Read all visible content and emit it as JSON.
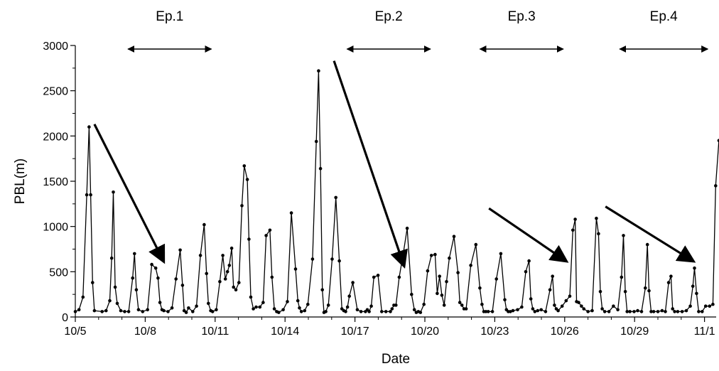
{
  "chart_data": {
    "type": "line",
    "xlabel": "Date",
    "ylabel": "PBL(m)",
    "x_ticks": [
      "10/5",
      "10/8",
      "10/11",
      "10/14",
      "10/17",
      "10/20",
      "10/23",
      "10/26",
      "10/29",
      "11/1"
    ],
    "x_tick_values": [
      0,
      3,
      6,
      9,
      12,
      15,
      18,
      21,
      24,
      27
    ],
    "xlim": [
      0,
      27.6
    ],
    "y_ticks": [
      "0",
      "500",
      "1000",
      "1500",
      "2000",
      "2500",
      "3000"
    ],
    "ylim": [
      0,
      3000
    ],
    "grid": false,
    "marker": "dot",
    "color": "#000000",
    "series": [
      {
        "x": [
          0.0,
          0.16,
          0.33,
          0.49,
          0.59,
          0.66,
          0.74,
          0.82,
          1.15,
          1.32,
          1.48,
          1.56,
          1.63,
          1.71,
          1.8,
          1.95,
          2.12,
          2.29,
          2.46,
          2.54,
          2.62,
          2.71,
          2.89,
          3.1,
          3.28,
          3.45,
          3.55,
          3.63,
          3.72,
          3.8,
          3.98,
          4.15,
          4.32,
          4.5,
          4.6,
          4.67,
          4.76,
          4.86,
          5.04,
          5.2,
          5.37,
          5.53,
          5.63,
          5.71,
          5.81,
          5.89,
          6.05,
          6.2,
          6.33,
          6.44,
          6.53,
          6.61,
          6.71,
          6.79,
          6.89,
          7.02,
          7.15,
          7.25,
          7.38,
          7.45,
          7.53,
          7.64,
          7.76,
          7.92,
          8.06,
          8.19,
          8.35,
          8.44,
          8.54,
          8.64,
          8.73,
          8.92,
          9.1,
          9.27,
          9.45,
          9.55,
          9.62,
          9.7,
          9.84,
          9.98,
          10.18,
          10.34,
          10.44,
          10.52,
          10.6,
          10.67,
          10.75,
          10.86,
          11.02,
          11.18,
          11.33,
          11.44,
          11.52,
          11.6,
          11.68,
          11.76,
          11.91,
          12.1,
          12.26,
          12.45,
          12.53,
          12.61,
          12.7,
          12.81,
          12.99,
          13.15,
          13.33,
          13.52,
          13.59,
          13.67,
          13.76,
          13.9,
          14.06,
          14.24,
          14.43,
          14.55,
          14.63,
          14.72,
          14.81,
          14.96,
          15.12,
          15.28,
          15.44,
          15.53,
          15.63,
          15.73,
          15.83,
          15.93,
          16.05,
          16.25,
          16.42,
          16.5,
          16.59,
          16.68,
          16.77,
          16.97,
          17.19,
          17.36,
          17.45,
          17.53,
          17.62,
          17.72,
          17.9,
          18.07,
          18.26,
          18.43,
          18.5,
          18.58,
          18.67,
          18.78,
          18.98,
          19.16,
          19.33,
          19.47,
          19.55,
          19.63,
          19.72,
          19.84,
          19.99,
          20.18,
          20.37,
          20.48,
          20.56,
          20.64,
          20.72,
          20.89,
          21.06,
          21.22,
          21.35,
          21.45,
          21.51,
          21.6,
          21.72,
          21.82,
          22.0,
          22.18,
          22.36,
          22.45,
          22.53,
          22.61,
          22.72,
          22.9,
          23.09,
          23.28,
          23.44,
          23.52,
          23.6,
          23.68,
          23.8,
          23.98,
          24.13,
          24.3,
          24.46,
          24.55,
          24.62,
          24.71,
          24.82,
          25.0,
          25.18,
          25.32,
          25.46,
          25.56,
          25.63,
          25.72,
          25.85,
          26.04,
          26.22,
          26.39,
          26.5,
          26.57,
          26.66,
          26.75,
          26.9,
          27.05,
          27.22,
          27.36,
          27.48,
          27.62
        ],
        "y": [
          60,
          80,
          220,
          1350,
          2100,
          1350,
          380,
          70,
          60,
          70,
          180,
          650,
          1380,
          330,
          150,
          70,
          60,
          60,
          430,
          700,
          300,
          80,
          60,
          80,
          580,
          540,
          430,
          160,
          80,
          70,
          60,
          100,
          420,
          740,
          350,
          70,
          50,
          100,
          60,
          120,
          680,
          1020,
          480,
          150,
          70,
          60,
          80,
          390,
          680,
          420,
          500,
          570,
          760,
          330,
          300,
          380,
          1230,
          1670,
          1520,
          860,
          220,
          90,
          110,
          110,
          160,
          900,
          960,
          440,
          90,
          60,
          50,
          80,
          170,
          1150,
          530,
          180,
          100,
          60,
          70,
          140,
          640,
          1940,
          2720,
          1640,
          300,
          50,
          60,
          130,
          640,
          1320,
          620,
          90,
          70,
          60,
          110,
          230,
          380,
          80,
          60,
          60,
          80,
          60,
          120,
          440,
          460,
          60,
          60,
          60,
          90,
          130,
          130,
          440,
          680,
          980,
          250,
          80,
          50,
          60,
          50,
          140,
          510,
          680,
          690,
          260,
          450,
          240,
          130,
          390,
          650,
          890,
          490,
          160,
          130,
          90,
          90,
          570,
          800,
          320,
          140,
          60,
          60,
          60,
          60,
          420,
          700,
          190,
          80,
          60,
          60,
          70,
          80,
          110,
          500,
          620,
          200,
          90,
          60,
          70,
          80,
          60,
          300,
          450,
          130,
          90,
          70,
          120,
          180,
          230,
          960,
          1080,
          170,
          160,
          120,
          90,
          60,
          70,
          1090,
          920,
          280,
          90,
          60,
          60,
          120,
          80,
          440,
          900,
          280,
          60,
          60,
          60,
          70,
          60,
          320,
          800,
          290,
          60,
          60,
          60,
          70,
          60,
          380,
          450,
          90,
          60,
          60,
          60,
          70,
          120,
          340,
          540,
          260,
          60,
          60,
          120,
          120,
          140,
          1450,
          1950
        ]
      }
    ],
    "annotations": {
      "episodes": [
        {
          "label": "Ep.1",
          "start": 2.2,
          "end": 5.9
        },
        {
          "label": "Ep.2",
          "start": 11.6,
          "end": 15.3
        },
        {
          "label": "Ep.3",
          "start": 17.3,
          "end": 21.0
        },
        {
          "label": "Ep.4",
          "start": 23.3,
          "end": 27.2
        }
      ],
      "arrows": [
        {
          "from": [
            0.82,
            2130
          ],
          "to": [
            3.78,
            620
          ]
        },
        {
          "from": [
            11.1,
            2830
          ],
          "to": [
            14.1,
            570
          ]
        },
        {
          "from": [
            17.75,
            1200
          ],
          "to": [
            21.05,
            620
          ]
        },
        {
          "from": [
            22.75,
            1220
          ],
          "to": [
            26.5,
            620
          ]
        }
      ]
    }
  }
}
